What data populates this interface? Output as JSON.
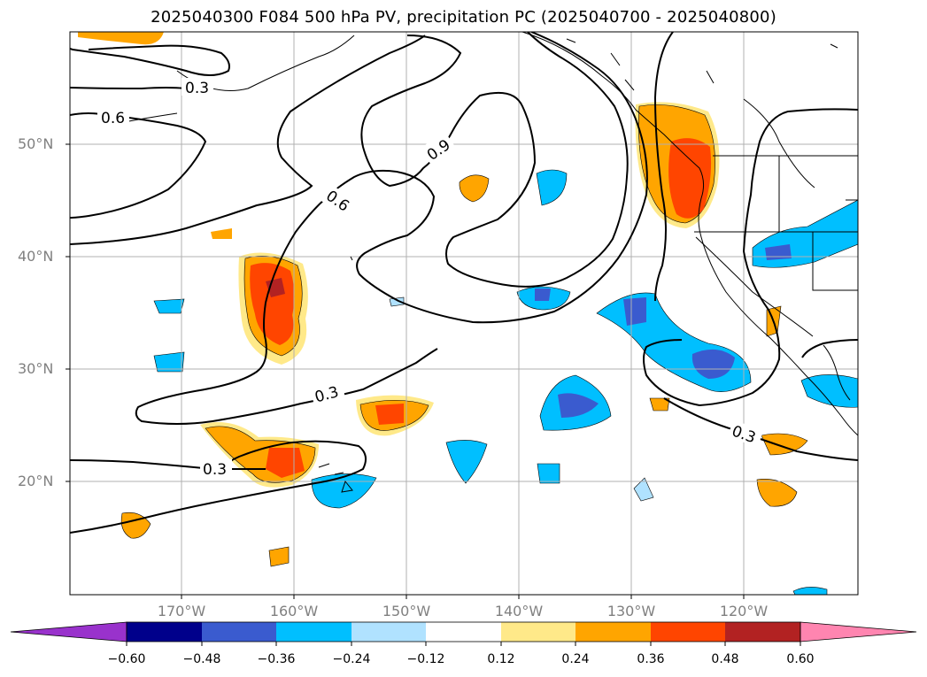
{
  "title": "2025040300 F084 500 hPa PV, precipitation PC (2025040700 - 2025040800)",
  "map": {
    "lat_labels": [
      "50°N",
      "40°N",
      "30°N",
      "20°N"
    ],
    "lon_labels": [
      "170°W",
      "160°W",
      "150°W",
      "140°W",
      "130°W",
      "120°W"
    ],
    "contour_labels": [
      "0.3",
      "0.6",
      "0.9",
      "0.6",
      "0.3",
      "0.3",
      "0.3"
    ]
  },
  "colorbar": {
    "ticks": [
      "−0.60",
      "−0.48",
      "−0.36",
      "−0.24",
      "−0.12",
      "0.12",
      "0.24",
      "0.36",
      "0.48",
      "0.60"
    ],
    "colors": [
      "#9932cc",
      "#00008b",
      "#3a5bcf",
      "#00bfff",
      "#b0e2ff",
      "#ffffff",
      "#ffe989",
      "#ffa500",
      "#ff4500",
      "#b22222",
      "#ff85b0"
    ]
  }
}
